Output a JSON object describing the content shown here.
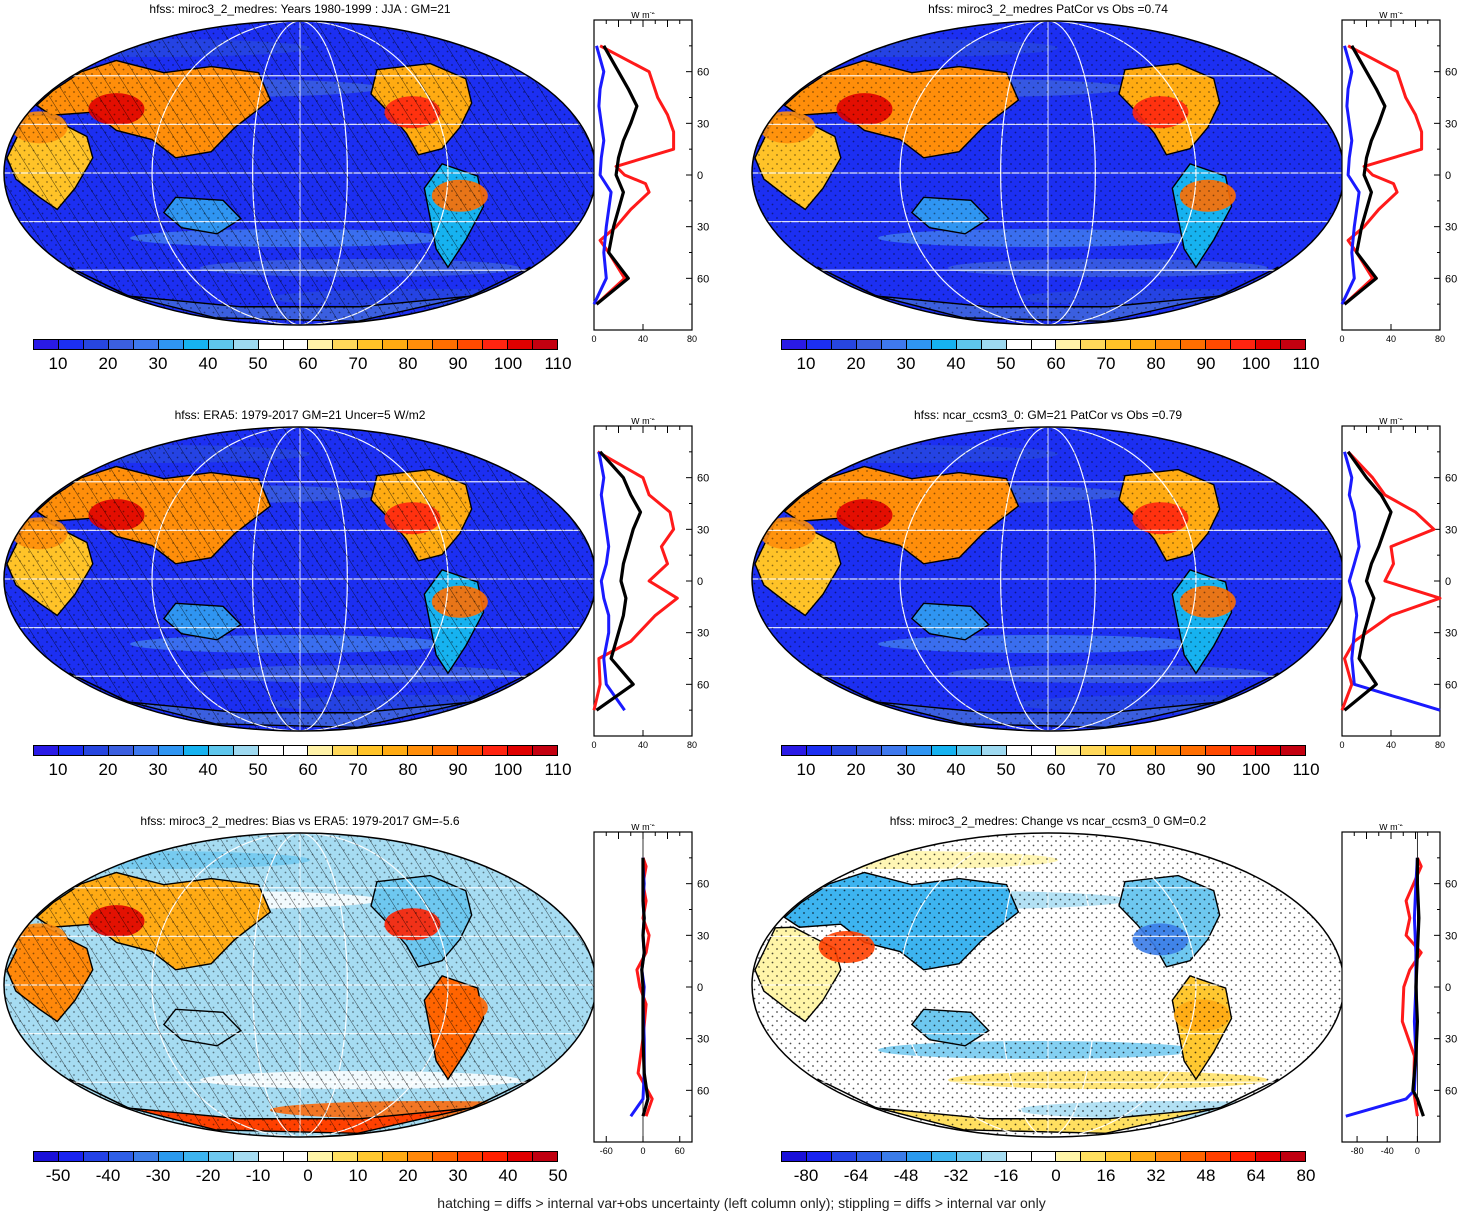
{
  "footer": "hatching = diffs > internal var+obs uncertainty (left column only); stippling = diffs > internal var only",
  "colors": {
    "abs_scale": [
      "#2a1ae6",
      "#1c2ff2",
      "#2746e0",
      "#3b5fe0",
      "#3f79ee",
      "#2f95f2",
      "#16b2f0",
      "#5ec6ec",
      "#9ed9f0",
      "#ffffff",
      "#ffffff",
      "#fff2a8",
      "#ffd85a",
      "#ffc328",
      "#ffab12",
      "#ff8e0a",
      "#ff6e00",
      "#ff4a00",
      "#ff2410",
      "#e00000",
      "#c40010"
    ],
    "diff_scale": [
      "#1a10d8",
      "#1a24f0",
      "#2442e6",
      "#2f5fe6",
      "#3b7ce8",
      "#2b9aee",
      "#3db4f0",
      "#6ec8f0",
      "#a6dcf2",
      "#ffffff",
      "#ffffff",
      "#fff5a8",
      "#ffe060",
      "#ffc830",
      "#ffaa14",
      "#ff880a",
      "#ff6400",
      "#ff4000",
      "#ff2000",
      "#e00000",
      "#c00010"
    ],
    "red_line": "#ff1a1a",
    "blue_line": "#1a1aff",
    "black_line": "#000000"
  },
  "panels": [
    {
      "id": "p1",
      "title": "hfss: miroc3_2_medres: Years 1980-1999 : JJA : GM=21",
      "scale": "abs",
      "hatch": true,
      "stipple": true,
      "bias": false,
      "change": false,
      "colorbar_ticks": [
        "10",
        "20",
        "30",
        "40",
        "50",
        "60",
        "70",
        "80",
        "90",
        "100",
        "110"
      ],
      "profile": {
        "unit": "W m",
        "unit_sup": "-2",
        "xlim": [
          0,
          80
        ],
        "xticks": [
          0,
          40,
          80
        ],
        "lat_labels": [
          "60N",
          "30N",
          "0",
          "30S",
          "60S"
        ]
      }
    },
    {
      "id": "p2",
      "title": "hfss: miroc3_2_medres PatCor vs Obs =0.74",
      "scale": "abs",
      "hatch": false,
      "stipple": true,
      "bias": false,
      "change": false,
      "colorbar_ticks": [
        "10",
        "20",
        "30",
        "40",
        "50",
        "60",
        "70",
        "80",
        "90",
        "100",
        "110"
      ],
      "profile": {
        "unit": "W m",
        "unit_sup": "-2",
        "xlim": [
          0,
          80
        ],
        "xticks": [
          0,
          40,
          80
        ],
        "lat_labels": [
          "60N",
          "30N",
          "0",
          "30S",
          "60S"
        ]
      }
    },
    {
      "id": "p3",
      "title": "hfss: ERA5: 1979-2017 GM=21 Uncer=5 W/m2",
      "scale": "abs",
      "hatch": true,
      "stipple": true,
      "bias": false,
      "change": false,
      "colorbar_ticks": [
        "10",
        "20",
        "30",
        "40",
        "50",
        "60",
        "70",
        "80",
        "90",
        "100",
        "110"
      ],
      "profile": {
        "unit": "W m",
        "unit_sup": "-2",
        "xlim": [
          0,
          80
        ],
        "xticks": [
          0,
          40,
          80
        ],
        "lat_labels": [
          "60N",
          "30N",
          "0",
          "30S",
          "60S"
        ]
      }
    },
    {
      "id": "p4",
      "title": "hfss: ncar_ccsm3_0: GM=21 PatCor vs Obs =0.79",
      "scale": "abs",
      "hatch": false,
      "stipple": true,
      "bias": false,
      "change": false,
      "colorbar_ticks": [
        "10",
        "20",
        "30",
        "40",
        "50",
        "60",
        "70",
        "80",
        "90",
        "100",
        "110"
      ],
      "profile": {
        "unit": "W m",
        "unit_sup": "-2",
        "xlim": [
          0,
          80
        ],
        "xticks": [
          0,
          40,
          80
        ],
        "lat_labels": [
          "60N",
          "30N",
          "0",
          "30S",
          "60S"
        ]
      }
    },
    {
      "id": "p5",
      "title": "hfss: miroc3_2_medres: Bias vs ERA5: 1979-2017 GM=-5.6",
      "scale": "diff",
      "hatch": true,
      "stipple": true,
      "bias": true,
      "change": false,
      "colorbar_ticks": [
        "-50",
        "-40",
        "-30",
        "-20",
        "-10",
        "0",
        "10",
        "20",
        "30",
        "40",
        "50"
      ],
      "profile": {
        "unit": "W m",
        "unit_sup": "-2",
        "xlim": [
          -80,
          80
        ],
        "xticks": [
          -60,
          0,
          60
        ],
        "lat_labels": [
          "60N",
          "30N",
          "0",
          "30S",
          "60S"
        ]
      }
    },
    {
      "id": "p6",
      "title": "hfss: miroc3_2_medres: Change vs ncar_ccsm3_0 GM=0.2",
      "scale": "diff",
      "hatch": false,
      "stipple": true,
      "bias": false,
      "change": true,
      "colorbar_ticks": [
        "-80",
        "-64",
        "-48",
        "-32",
        "-16",
        "0",
        "16",
        "32",
        "48",
        "64",
        "80"
      ],
      "profile": {
        "unit": "W m",
        "unit_sup": "-2",
        "xlim": [
          -100,
          30
        ],
        "xticks": [
          -80,
          -40,
          0
        ],
        "lat_labels": [
          "60N",
          "30N",
          "0",
          "30S",
          "60S"
        ]
      }
    }
  ],
  "chart_data": [
    {
      "type": "line",
      "panel": "p1",
      "ylim": [
        -90,
        90
      ],
      "series": [
        {
          "color": "red",
          "y": [
            -75,
            -60,
            -45,
            -38,
            -30,
            -20,
            -10,
            -5,
            0,
            5,
            15,
            25,
            35,
            45,
            60,
            75
          ],
          "x": [
            2,
            25,
            12,
            5,
            18,
            30,
            45,
            42,
            25,
            18,
            65,
            65,
            60,
            52,
            45,
            5
          ]
        },
        {
          "color": "blue",
          "y": [
            -75,
            -60,
            -45,
            -30,
            -20,
            -10,
            0,
            10,
            20,
            30,
            40,
            50,
            60,
            75
          ],
          "x": [
            0,
            10,
            8,
            10,
            12,
            14,
            5,
            6,
            8,
            6,
            4,
            5,
            8,
            2
          ]
        },
        {
          "color": "black",
          "y": [
            -75,
            -60,
            -45,
            -30,
            -20,
            -10,
            0,
            10,
            20,
            30,
            40,
            50,
            60,
            75
          ],
          "x": [
            2,
            28,
            12,
            16,
            20,
            24,
            18,
            20,
            24,
            30,
            35,
            28,
            20,
            8
          ]
        }
      ]
    },
    {
      "type": "line",
      "panel": "p2",
      "ylim": [
        -90,
        90
      ],
      "series": [
        {
          "color": "red",
          "y": [
            -75,
            -60,
            -45,
            -38,
            -30,
            -20,
            -10,
            -5,
            0,
            5,
            15,
            25,
            35,
            45,
            60,
            75
          ],
          "x": [
            2,
            25,
            12,
            5,
            18,
            30,
            45,
            42,
            25,
            18,
            65,
            65,
            60,
            52,
            45,
            5
          ]
        },
        {
          "color": "blue",
          "y": [
            -75,
            -60,
            -45,
            -30,
            -20,
            -10,
            0,
            10,
            20,
            30,
            40,
            50,
            60,
            75
          ],
          "x": [
            0,
            10,
            8,
            10,
            12,
            14,
            5,
            6,
            8,
            6,
            4,
            5,
            8,
            2
          ]
        },
        {
          "color": "black",
          "y": [
            -75,
            -60,
            -45,
            -30,
            -20,
            -10,
            0,
            10,
            20,
            30,
            40,
            50,
            60,
            75
          ],
          "x": [
            2,
            28,
            12,
            16,
            20,
            24,
            18,
            20,
            24,
            30,
            35,
            28,
            20,
            8
          ]
        }
      ]
    },
    {
      "type": "line",
      "panel": "p3",
      "ylim": [
        -90,
        90
      ],
      "series": [
        {
          "color": "red",
          "y": [
            -75,
            -60,
            -45,
            -35,
            -20,
            -10,
            0,
            10,
            20,
            30,
            40,
            50,
            60,
            75
          ],
          "x": [
            0,
            5,
            4,
            30,
            50,
            68,
            45,
            60,
            55,
            65,
            62,
            45,
            40,
            3
          ]
        },
        {
          "color": "blue",
          "y": [
            -75,
            -60,
            -45,
            -30,
            -20,
            -10,
            0,
            10,
            20,
            30,
            40,
            50,
            60,
            75
          ],
          "x": [
            25,
            10,
            8,
            12,
            12,
            8,
            6,
            10,
            12,
            10,
            8,
            6,
            8,
            4
          ]
        },
        {
          "color": "black",
          "y": [
            -75,
            -60,
            -45,
            -30,
            -20,
            -10,
            0,
            10,
            20,
            30,
            40,
            50,
            60,
            75
          ],
          "x": [
            2,
            32,
            14,
            20,
            24,
            26,
            22,
            24,
            28,
            32,
            38,
            30,
            24,
            5
          ]
        }
      ]
    },
    {
      "type": "line",
      "panel": "p4",
      "ylim": [
        -90,
        90
      ],
      "series": [
        {
          "color": "red",
          "y": [
            -75,
            -60,
            -45,
            -35,
            -20,
            -10,
            0,
            10,
            20,
            30,
            40,
            50,
            60,
            75
          ],
          "x": [
            0,
            8,
            2,
            10,
            40,
            80,
            35,
            42,
            40,
            75,
            60,
            35,
            25,
            5
          ]
        },
        {
          "color": "blue",
          "y": [
            -75,
            -60,
            -45,
            -30,
            -20,
            -10,
            0,
            10,
            20,
            30,
            40,
            50,
            60,
            75
          ],
          "x": [
            80,
            10,
            8,
            10,
            12,
            10,
            6,
            10,
            14,
            12,
            10,
            6,
            8,
            2
          ]
        },
        {
          "color": "black",
          "y": [
            -75,
            -60,
            -45,
            -30,
            -20,
            -10,
            0,
            10,
            20,
            30,
            40,
            50,
            60,
            75
          ],
          "x": [
            2,
            28,
            14,
            18,
            22,
            26,
            20,
            24,
            30,
            35,
            40,
            32,
            20,
            5
          ]
        }
      ]
    },
    {
      "type": "line",
      "panel": "p5",
      "ylim": [
        -90,
        90
      ],
      "series": [
        {
          "color": "red",
          "y": [
            -75,
            -65,
            -50,
            -30,
            -10,
            0,
            10,
            20,
            30,
            40,
            50,
            60,
            70,
            75
          ],
          "x": [
            5,
            15,
            -8,
            0,
            5,
            -5,
            -10,
            5,
            10,
            0,
            5,
            0,
            5,
            0
          ]
        },
        {
          "color": "blue",
          "y": [
            -75,
            -65,
            -50,
            -30,
            -10,
            0,
            10,
            20,
            30,
            40,
            50,
            60,
            70,
            75
          ],
          "x": [
            -20,
            0,
            2,
            2,
            0,
            2,
            -2,
            2,
            0,
            2,
            0,
            2,
            0,
            0
          ]
        },
        {
          "color": "black",
          "y": [
            -75,
            -65,
            -50,
            -30,
            -10,
            0,
            10,
            20,
            30,
            40,
            50,
            60,
            70,
            75
          ],
          "x": [
            0,
            8,
            2,
            0,
            0,
            0,
            -2,
            2,
            0,
            2,
            0,
            0,
            0,
            0
          ]
        }
      ]
    },
    {
      "type": "line",
      "panel": "p6",
      "ylim": [
        -90,
        90
      ],
      "series": [
        {
          "color": "red",
          "y": [
            -75,
            -60,
            -40,
            -20,
            0,
            10,
            20,
            30,
            40,
            50,
            60,
            70,
            75
          ],
          "x": [
            0,
            -5,
            -4,
            -20,
            -18,
            -10,
            5,
            -15,
            -10,
            -15,
            -5,
            5,
            0
          ]
        },
        {
          "color": "blue",
          "y": [
            -75,
            -65,
            -60,
            -40,
            -20,
            0,
            20,
            40,
            60,
            75
          ],
          "x": [
            -95,
            -15,
            -4,
            -2,
            -4,
            -2,
            -2,
            -4,
            -2,
            0
          ]
        },
        {
          "color": "black",
          "y": [
            -75,
            -65,
            -60,
            -40,
            -20,
            0,
            20,
            40,
            60,
            75
          ],
          "x": [
            8,
            0,
            -6,
            -2,
            0,
            -2,
            0,
            2,
            0,
            0
          ]
        }
      ]
    }
  ]
}
